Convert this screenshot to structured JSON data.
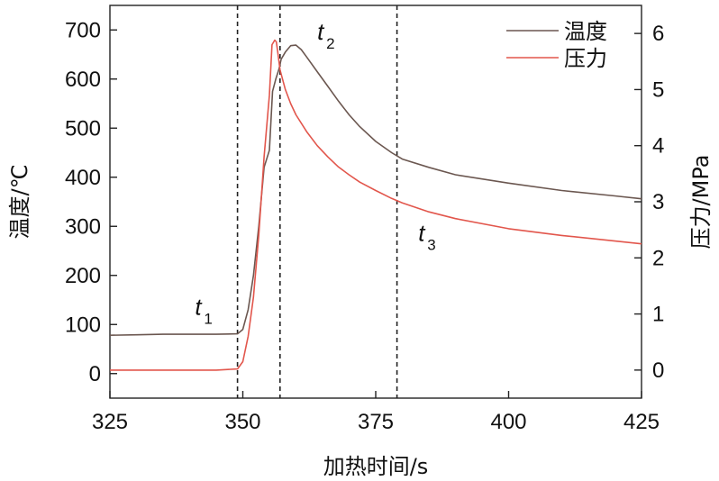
{
  "chart_data": {
    "type": "line",
    "xlabel": "加热时间/s",
    "ylabel_left": "温度/℃",
    "ylabel_right": "压力/MPa",
    "xlim": [
      325,
      425
    ],
    "ylim_left": [
      -50,
      750
    ],
    "ylim_right": [
      -0.5,
      6.5
    ],
    "x_ticks": [
      "325",
      "350",
      "375",
      "400",
      "425"
    ],
    "y_left_ticks": [
      "0",
      "100",
      "200",
      "300",
      "400",
      "500",
      "600",
      "700"
    ],
    "y_right_ticks": [
      "0",
      "1",
      "2",
      "3",
      "4",
      "5",
      "6"
    ],
    "legend_position": "top-right",
    "grid": false,
    "series": [
      {
        "name": "温度",
        "axis": "left",
        "color": "#6b5750",
        "x": [
          325,
          330,
          335,
          340,
          345,
          349,
          350,
          351,
          352,
          353,
          354,
          355,
          355.6,
          356.2,
          356.8,
          357.2,
          358,
          359,
          360,
          361,
          362,
          364,
          366,
          368,
          370,
          372,
          375,
          378,
          380,
          385,
          390,
          400,
          410,
          420,
          425
        ],
        "values": [
          78,
          79,
          80,
          80,
          80,
          81,
          90,
          130,
          200,
          300,
          420,
          455,
          575,
          600,
          620,
          640,
          655,
          668,
          669,
          660,
          645,
          615,
          585,
          555,
          527,
          503,
          473,
          450,
          437,
          420,
          405,
          388,
          373,
          362,
          356
        ]
      },
      {
        "name": "压力",
        "axis": "right",
        "color": "#e2564c",
        "x": [
          325,
          330,
          335,
          340,
          345,
          349,
          350,
          351,
          352,
          353,
          354,
          355,
          355.5,
          356,
          356.3,
          356.6,
          357,
          358,
          359,
          360,
          362,
          364,
          366,
          368,
          370,
          372,
          375,
          378,
          380,
          385,
          390,
          400,
          410,
          420,
          425
        ],
        "values": [
          0.0,
          0.0,
          0.0,
          0.0,
          0.0,
          0.02,
          0.15,
          0.6,
          1.3,
          2.4,
          3.8,
          4.9,
          5.8,
          5.88,
          5.85,
          5.65,
          5.35,
          5.0,
          4.75,
          4.55,
          4.25,
          4.0,
          3.8,
          3.62,
          3.48,
          3.35,
          3.2,
          3.06,
          2.98,
          2.82,
          2.7,
          2.52,
          2.4,
          2.3,
          2.25
        ]
      }
    ],
    "vlines": [
      349,
      357,
      379
    ],
    "annotations": [
      {
        "base": "t",
        "sub": "1",
        "x": 341,
        "y": 120,
        "axis": "left"
      },
      {
        "base": "t",
        "sub": "2",
        "x": 364,
        "y": 680,
        "axis": "left"
      },
      {
        "base": "t",
        "sub": "3",
        "x": 383,
        "y": 270,
        "axis": "left"
      }
    ]
  }
}
